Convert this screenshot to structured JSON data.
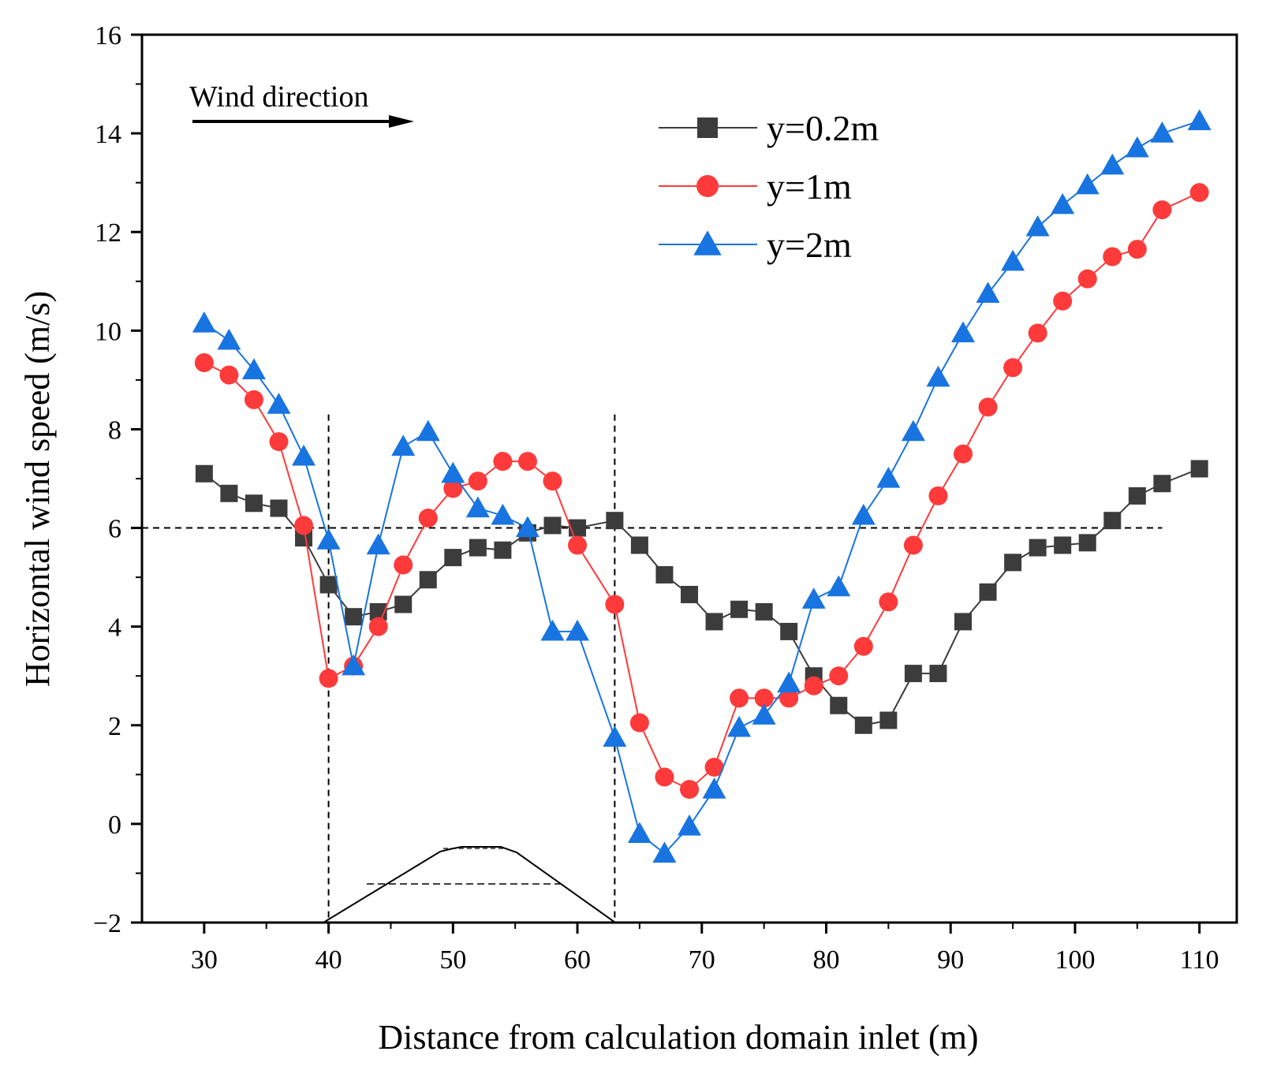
{
  "chart_data": {
    "type": "line",
    "xlabel": "Distance from calculation domain inlet (m)",
    "ylabel": "Horizontal wind speed (m/s)",
    "xlim": [
      25,
      113
    ],
    "ylim": [
      -2,
      16
    ],
    "xticks": [
      30,
      40,
      50,
      60,
      70,
      80,
      90,
      100,
      110
    ],
    "yticks": [
      -2,
      0,
      2,
      4,
      6,
      8,
      10,
      12,
      14,
      16
    ],
    "legend_position": "top-right",
    "annotation": {
      "text": "Wind direction"
    },
    "reference_lines": {
      "horizontal_y": 6,
      "vertical_x": [
        40,
        63
      ]
    },
    "series": [
      {
        "name": "y=0.2m",
        "color": "#3c3c3c",
        "marker": "square",
        "x": [
          30,
          32,
          34,
          36,
          38,
          40,
          42,
          44,
          46,
          48,
          50,
          52,
          54,
          56,
          58,
          60,
          63,
          65,
          67,
          69,
          71,
          73,
          75,
          77,
          79,
          81,
          83,
          85,
          87,
          89,
          91,
          93,
          95,
          97,
          99,
          101,
          103,
          105,
          107,
          110
        ],
        "y": [
          7.1,
          6.7,
          6.5,
          6.4,
          5.8,
          4.85,
          4.2,
          4.3,
          4.45,
          4.95,
          5.4,
          5.6,
          5.55,
          5.9,
          6.05,
          6.0,
          6.15,
          5.65,
          5.05,
          4.65,
          4.1,
          4.35,
          4.3,
          3.9,
          3.0,
          2.4,
          2.0,
          2.1,
          3.05,
          3.05,
          4.1,
          4.7,
          5.3,
          5.6,
          5.65,
          5.7,
          6.15,
          6.65,
          6.9,
          7.2
        ]
      },
      {
        "name": "y=1m",
        "color": "#ff3a3a",
        "marker": "circle",
        "x": [
          30,
          32,
          34,
          36,
          38,
          40,
          42,
          44,
          46,
          48,
          50,
          52,
          54,
          56,
          58,
          60,
          63,
          65,
          67,
          69,
          71,
          73,
          75,
          77,
          79,
          81,
          83,
          85,
          87,
          89,
          91,
          93,
          95,
          97,
          99,
          101,
          103,
          105,
          107,
          110
        ],
        "y": [
          9.35,
          9.1,
          8.6,
          7.75,
          6.05,
          2.95,
          3.2,
          4.0,
          5.25,
          6.2,
          6.8,
          6.95,
          7.35,
          7.35,
          6.95,
          5.65,
          4.45,
          2.05,
          0.95,
          0.7,
          1.15,
          2.55,
          2.55,
          2.55,
          2.8,
          3.0,
          3.6,
          4.5,
          5.65,
          6.65,
          7.5,
          8.45,
          9.25,
          9.95,
          10.6,
          11.05,
          11.5,
          11.65,
          12.45,
          12.8
        ]
      },
      {
        "name": "y=2m",
        "color": "#1874e0",
        "marker": "triangle",
        "x": [
          30,
          32,
          34,
          36,
          38,
          40,
          42,
          44,
          46,
          48,
          50,
          52,
          54,
          56,
          58,
          60,
          63,
          65,
          67,
          69,
          71,
          73,
          75,
          77,
          79,
          81,
          83,
          85,
          87,
          89,
          91,
          93,
          95,
          97,
          99,
          101,
          103,
          105,
          107,
          110
        ],
        "y": [
          10.15,
          9.8,
          9.2,
          8.5,
          7.45,
          5.75,
          3.2,
          5.65,
          7.65,
          7.95,
          7.1,
          6.4,
          6.25,
          6.0,
          3.9,
          3.9,
          1.75,
          -0.2,
          -0.6,
          -0.05,
          0.7,
          1.95,
          2.2,
          2.85,
          4.55,
          4.8,
          6.25,
          7.0,
          7.95,
          9.05,
          9.95,
          10.75,
          11.4,
          12.1,
          12.55,
          12.95,
          13.35,
          13.7,
          14.0,
          14.25
        ]
      }
    ]
  }
}
